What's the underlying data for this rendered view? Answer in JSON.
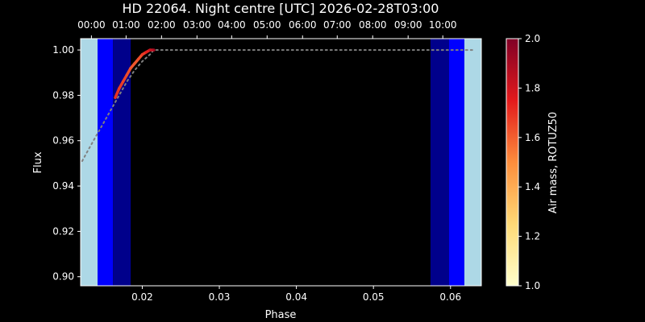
{
  "chart_data": {
    "type": "line",
    "title": "HD 22064. Night centre [UTC] 2026-02-28T03:00",
    "xlabel": "Phase",
    "ylabel": "Flux",
    "xlim": [
      0.012,
      0.064
    ],
    "ylim": [
      0.896,
      1.005
    ],
    "x_ticks": [
      {
        "value": 0.02,
        "label": "0.02"
      },
      {
        "value": 0.03,
        "label": "0.03"
      },
      {
        "value": 0.04,
        "label": "0.04"
      },
      {
        "value": 0.05,
        "label": "0.05"
      },
      {
        "value": 0.06,
        "label": "0.06"
      }
    ],
    "y_ticks": [
      {
        "value": 0.9,
        "label": "0.90"
      },
      {
        "value": 0.92,
        "label": "0.92"
      },
      {
        "value": 0.94,
        "label": "0.94"
      },
      {
        "value": 0.96,
        "label": "0.96"
      },
      {
        "value": 0.98,
        "label": "0.98"
      },
      {
        "value": 1.0,
        "label": "1.00"
      }
    ],
    "top_axis_ticks": [
      {
        "value": 0.0134,
        "label": "00:00"
      },
      {
        "value": 0.0179,
        "label": "01:00"
      },
      {
        "value": 0.0225,
        "label": "02:00"
      },
      {
        "value": 0.0271,
        "label": "03:00"
      },
      {
        "value": 0.0316,
        "label": "04:00"
      },
      {
        "value": 0.0362,
        "label": "05:00"
      },
      {
        "value": 0.0408,
        "label": "06:00"
      },
      {
        "value": 0.0453,
        "label": "07:00"
      },
      {
        "value": 0.0499,
        "label": "08:00"
      },
      {
        "value": 0.0545,
        "label": "09:00"
      },
      {
        "value": 0.059,
        "label": "10:00"
      }
    ],
    "twilight_bands": [
      {
        "name": "day",
        "x": [
          0.012,
          0.0142
        ],
        "color": "#add8e6"
      },
      {
        "name": "civil",
        "x": [
          0.0142,
          0.0162
        ],
        "color": "#0000ff"
      },
      {
        "name": "nautical",
        "x": [
          0.0162,
          0.0185
        ],
        "color": "#00008b"
      },
      {
        "name": "nautical",
        "x": [
          0.0574,
          0.0598
        ],
        "color": "#00008b"
      },
      {
        "name": "civil",
        "x": [
          0.0598,
          0.0618
        ],
        "color": "#0000ff"
      },
      {
        "name": "day",
        "x": [
          0.0618,
          0.064
        ],
        "color": "#add8e6"
      }
    ],
    "model_curve": {
      "style": "dotted",
      "color": "#808080",
      "x": [
        0.0122,
        0.013,
        0.014,
        0.015,
        0.016,
        0.017,
        0.018,
        0.019,
        0.02,
        0.021,
        0.0215,
        0.022,
        0.025,
        0.03,
        0.035,
        0.04,
        0.045,
        0.05,
        0.055,
        0.06,
        0.063
      ],
      "y": [
        0.951,
        0.956,
        0.962,
        0.968,
        0.974,
        0.98,
        0.986,
        0.991,
        0.995,
        0.998,
        1.0,
        1.0,
        1.0,
        1.0,
        1.0,
        1.0,
        1.0,
        1.0,
        1.0,
        1.0,
        1.0
      ]
    },
    "observed_points": {
      "colorbar_field": "airmass",
      "x": [
        0.0165,
        0.017,
        0.0175,
        0.018,
        0.0185,
        0.019,
        0.0195,
        0.02,
        0.0205,
        0.021,
        0.0215
      ],
      "y": [
        0.979,
        0.983,
        0.986,
        0.989,
        0.992,
        0.994,
        0.996,
        0.998,
        0.999,
        1.0,
        1.0
      ],
      "airmass": [
        1.7,
        1.68,
        1.66,
        1.64,
        1.62,
        1.62,
        1.64,
        1.68,
        1.74,
        1.82,
        1.9
      ]
    },
    "colorbar": {
      "label": "Air mass, ROTUZ50",
      "range": [
        1.0,
        2.0
      ],
      "colormap": "YlOrRd",
      "ticks": [
        {
          "value": 1.0,
          "label": "1.0"
        },
        {
          "value": 1.2,
          "label": "1.2"
        },
        {
          "value": 1.4,
          "label": "1.4"
        },
        {
          "value": 1.6,
          "label": "1.6"
        },
        {
          "value": 1.8,
          "label": "1.8"
        },
        {
          "value": 2.0,
          "label": "2.0"
        }
      ]
    },
    "grid": false
  }
}
